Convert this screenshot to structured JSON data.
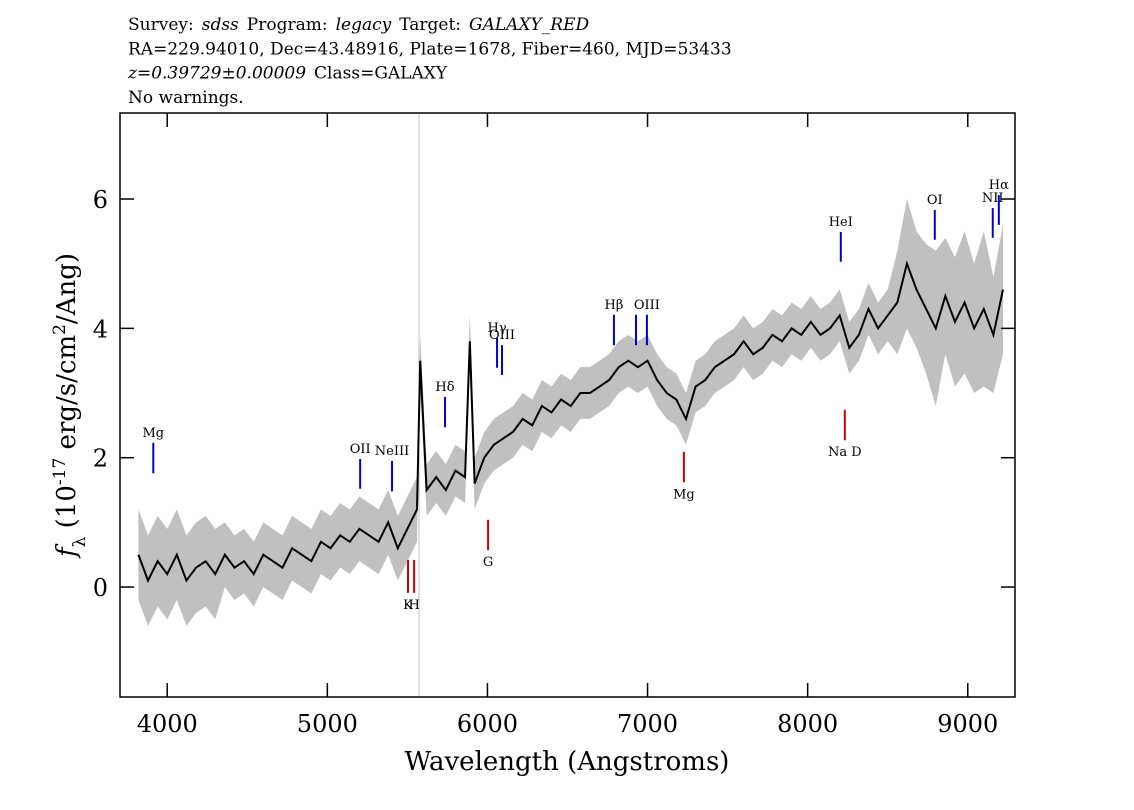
{
  "chart_data": {
    "type": "spectrum",
    "header_lines": [
      [
        {
          "text": "Survey:"
        },
        {
          "text": "sdss",
          "italic": true
        },
        {
          "text": "Program:"
        },
        {
          "text": "legacy",
          "italic": true
        },
        {
          "text": "Target:"
        },
        {
          "text": "GALAXY_RED",
          "italic": true
        }
      ],
      [
        {
          "text": "RA=229.94010, Dec=43.48916, Plate=1678, Fiber=460, MJD=53433"
        }
      ],
      [
        {
          "text": "z=0.39729±0.00009",
          "italic": true
        },
        {
          "text": "Class=GALAXY"
        }
      ],
      [
        {
          "text": "No warnings."
        }
      ]
    ],
    "xlabel": "Wavelength (Angstroms)",
    "ylabel_parts": [
      {
        "text": "f"
      },
      {
        "text": "λ",
        "shift": "sub"
      },
      {
        "text": " (10"
      },
      {
        "text": "-17",
        "shift": "super"
      },
      {
        "text": " erg/s/cm"
      },
      {
        "text": "2",
        "shift": "super"
      },
      {
        "text": "/Ang)"
      }
    ],
    "xlim": [
      3705,
      9295
    ],
    "ylim": [
      -1.7,
      7.33
    ],
    "xticks": [
      4000,
      5000,
      6000,
      7000,
      8000,
      9000
    ],
    "yticks": [
      0,
      2,
      4,
      6
    ],
    "color": "#000000",
    "error_color": "#c0c0c0",
    "x": [
      3820,
      3880,
      3940,
      4000,
      4060,
      4120,
      4180,
      4240,
      4300,
      4360,
      4420,
      4480,
      4540,
      4600,
      4660,
      4720,
      4780,
      4840,
      4900,
      4960,
      5020,
      5080,
      5140,
      5200,
      5260,
      5320,
      5380,
      5440,
      5500,
      5560,
      5580,
      5620,
      5680,
      5740,
      5800,
      5860,
      5890,
      5920,
      5980,
      6040,
      6100,
      6160,
      6220,
      6280,
      6340,
      6400,
      6460,
      6520,
      6580,
      6640,
      6700,
      6760,
      6820,
      6880,
      6940,
      7000,
      7060,
      7120,
      7180,
      7240,
      7300,
      7360,
      7420,
      7480,
      7540,
      7600,
      7660,
      7720,
      7780,
      7840,
      7900,
      7960,
      8020,
      8080,
      8140,
      8200,
      8260,
      8320,
      8380,
      8440,
      8500,
      8560,
      8620,
      8680,
      8740,
      8800,
      8860,
      8920,
      8980,
      9040,
      9100,
      9160,
      9220
    ],
    "values": [
      0.5,
      0.1,
      0.4,
      0.2,
      0.5,
      0.1,
      0.3,
      0.4,
      0.2,
      0.5,
      0.3,
      0.4,
      0.2,
      0.5,
      0.4,
      0.3,
      0.6,
      0.5,
      0.4,
      0.7,
      0.6,
      0.8,
      0.7,
      0.9,
      0.8,
      0.7,
      1.0,
      0.6,
      0.9,
      1.2,
      3.5,
      1.5,
      1.7,
      1.5,
      1.8,
      1.7,
      3.8,
      1.6,
      2.0,
      2.2,
      2.3,
      2.4,
      2.6,
      2.5,
      2.8,
      2.7,
      2.9,
      2.8,
      3.0,
      3.0,
      3.1,
      3.2,
      3.4,
      3.5,
      3.4,
      3.5,
      3.2,
      3.0,
      2.9,
      2.6,
      3.1,
      3.2,
      3.4,
      3.5,
      3.6,
      3.8,
      3.6,
      3.7,
      3.9,
      3.8,
      4.0,
      3.9,
      4.1,
      3.9,
      4.0,
      4.2,
      3.7,
      3.9,
      4.3,
      4.0,
      4.2,
      4.4,
      5.0,
      4.6,
      4.3,
      4.0,
      4.5,
      4.1,
      4.4,
      4.0,
      4.3,
      3.9,
      4.6
    ],
    "errors": [
      0.7,
      0.7,
      0.7,
      0.7,
      0.7,
      0.7,
      0.7,
      0.7,
      0.7,
      0.5,
      0.5,
      0.5,
      0.5,
      0.5,
      0.5,
      0.5,
      0.5,
      0.5,
      0.5,
      0.5,
      0.5,
      0.5,
      0.5,
      0.5,
      0.5,
      0.5,
      0.5,
      0.5,
      0.5,
      0.5,
      0.4,
      0.4,
      0.4,
      0.4,
      0.4,
      0.4,
      0.4,
      0.4,
      0.4,
      0.4,
      0.4,
      0.4,
      0.4,
      0.4,
      0.4,
      0.4,
      0.4,
      0.4,
      0.4,
      0.4,
      0.4,
      0.4,
      0.4,
      0.4,
      0.4,
      0.4,
      0.4,
      0.4,
      0.4,
      0.4,
      0.4,
      0.4,
      0.4,
      0.4,
      0.4,
      0.4,
      0.4,
      0.4,
      0.4,
      0.4,
      0.4,
      0.4,
      0.4,
      0.4,
      0.4,
      0.4,
      0.4,
      0.4,
      0.4,
      0.4,
      0.4,
      0.8,
      1.0,
      0.9,
      1.0,
      1.2,
      0.9,
      1.0,
      1.1,
      1.0,
      1.2,
      0.9,
      1.0
    ],
    "lines": [
      {
        "label": "Mg",
        "x": 3913,
        "flux": [
          1.76,
          2.23
        ],
        "color": "#0000cc"
      },
      {
        "label": "OII",
        "x": 5205,
        "flux": [
          1.52,
          1.98
        ],
        "color": "#0000cc"
      },
      {
        "label": "NeIII",
        "x": 5404,
        "flux": [
          1.48,
          1.95
        ],
        "color": "#0000cc"
      },
      {
        "label": "Hδ",
        "x": 5735,
        "flux": [
          2.47,
          2.94
        ],
        "color": "#0000cc"
      },
      {
        "label": "Hγ",
        "x": 6060,
        "flux": [
          3.39,
          3.85
        ],
        "color": "#0000cc"
      },
      {
        "label": "OIII",
        "x": 6091,
        "flux": [
          3.28,
          3.74
        ],
        "color": "#0000cc"
      },
      {
        "label": "Hβ",
        "x": 6790,
        "flux": [
          3.74,
          4.21
        ],
        "color": "#0000cc"
      },
      {
        "label": null,
        "x": 6928,
        "flux": [
          3.74,
          4.21
        ],
        "color": "#0000cc"
      },
      {
        "label": "OIII",
        "x": 6996,
        "flux": [
          3.74,
          4.21
        ],
        "color": "#0000cc"
      },
      {
        "label": "HeI",
        "x": 8207,
        "flux": [
          5.03,
          5.49
        ],
        "color": "#0000cc"
      },
      {
        "label": "OI",
        "x": 8794,
        "flux": [
          5.37,
          5.83
        ],
        "color": "#0000cc"
      },
      {
        "label": "NII",
        "x": 9156,
        "flux": [
          5.4,
          5.86
        ],
        "color": "#0000cc"
      },
      {
        "label": "Hα",
        "x": 9194,
        "flux": [
          5.6,
          6.06
        ],
        "color": "#0000cc"
      },
      {
        "label": "K",
        "x": 5504,
        "flux": [
          -0.09,
          0.42
        ],
        "color": "#cc0000"
      },
      {
        "label": "H",
        "x": 5542,
        "flux": [
          -0.09,
          0.42
        ],
        "color": "#cc0000"
      },
      {
        "label": "G",
        "x": 6004,
        "flux": [
          0.57,
          1.04
        ],
        "color": "#cc0000"
      },
      {
        "label": "Mg",
        "x": 7227,
        "flux": [
          1.62,
          2.09
        ],
        "color": "#cc0000"
      },
      {
        "label": "Na D",
        "x": 8232,
        "flux": [
          2.27,
          2.74
        ],
        "color": "#cc0000"
      }
    ]
  }
}
